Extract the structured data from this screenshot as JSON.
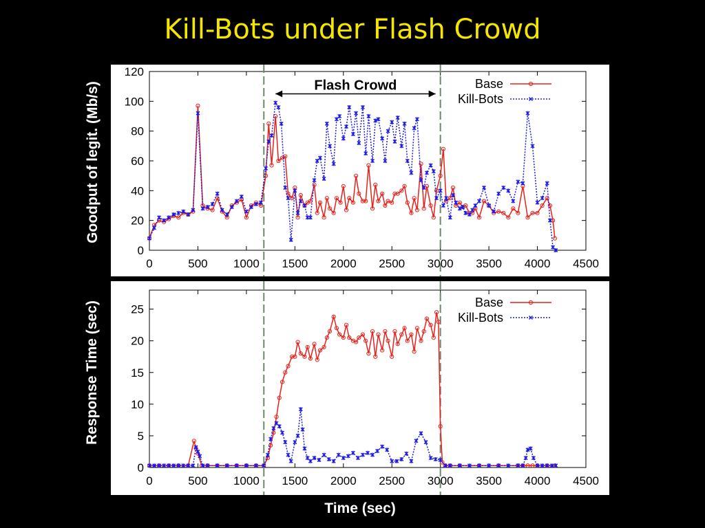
{
  "slide": {
    "title": "Kill-Bots under Flash Crowd",
    "xlabel": "Time (sec)",
    "colors": {
      "background": "#000000",
      "title": "#f5e600",
      "base": "#e8201a",
      "killbots": "#1a1ae8",
      "marker_line": "#6a8a6a"
    }
  },
  "chart_data": [
    {
      "type": "line",
      "title": "",
      "xlabel": "",
      "ylabel": "Goodput of legit.  (Mb/s)",
      "xlim": [
        0,
        4500
      ],
      "ylim": [
        0,
        120
      ],
      "xticks": [
        0,
        500,
        1000,
        1500,
        2000,
        2500,
        3000,
        3500,
        4000,
        4500
      ],
      "yticks": [
        0,
        20,
        40,
        60,
        80,
        100,
        120
      ],
      "grid": false,
      "legend": "top-right",
      "annotation": {
        "text": "Flash Crowd",
        "x_start": 1300,
        "x_end": 2950,
        "y": 105
      },
      "vlines": [
        1180,
        3000
      ],
      "series": [
        {
          "name": "Base",
          "x": [
            0,
            50,
            100,
            150,
            200,
            250,
            300,
            350,
            400,
            450,
            500,
            550,
            600,
            650,
            700,
            750,
            800,
            850,
            900,
            950,
            1000,
            1050,
            1100,
            1150,
            1200,
            1230,
            1260,
            1300,
            1330,
            1370,
            1400,
            1430,
            1470,
            1500,
            1530,
            1560,
            1600,
            1630,
            1660,
            1700,
            1730,
            1760,
            1800,
            1830,
            1860,
            1900,
            1930,
            1970,
            2000,
            2030,
            2060,
            2100,
            2130,
            2160,
            2200,
            2230,
            2260,
            2300,
            2330,
            2360,
            2400,
            2430,
            2460,
            2500,
            2530,
            2560,
            2600,
            2630,
            2660,
            2700,
            2730,
            2760,
            2800,
            2830,
            2860,
            2900,
            2930,
            2960,
            3000,
            3030,
            3060,
            3100,
            3130,
            3160,
            3200,
            3230,
            3260,
            3300,
            3330,
            3360,
            3400,
            3450,
            3500,
            3550,
            3600,
            3650,
            3700,
            3750,
            3800,
            3850,
            3900,
            3950,
            4000,
            4050,
            4100,
            4130,
            4160,
            4180
          ],
          "values": [
            8,
            17,
            20,
            19,
            21,
            23,
            22,
            25,
            24,
            26,
            97,
            30,
            28,
            27,
            35,
            26,
            22,
            30,
            32,
            34,
            22,
            30,
            32,
            30,
            50,
            85,
            57,
            90,
            60,
            62,
            63,
            38,
            35,
            42,
            22,
            37,
            30,
            32,
            33,
            44,
            25,
            32,
            22,
            35,
            28,
            25,
            35,
            32,
            43,
            27,
            35,
            32,
            50,
            38,
            33,
            33,
            57,
            28,
            44,
            33,
            38,
            30,
            33,
            32,
            38,
            38,
            40,
            43,
            32,
            25,
            35,
            27,
            58,
            28,
            43,
            30,
            22,
            40,
            50,
            68,
            33,
            35,
            42,
            30,
            32,
            29,
            30,
            25,
            25,
            28,
            22,
            33,
            30,
            25,
            26,
            25,
            22,
            28,
            25,
            43,
            22,
            25,
            25,
            30,
            35,
            30,
            20,
            8
          ]
        },
        {
          "name": "Kill-Bots",
          "x": [
            0,
            50,
            100,
            150,
            200,
            250,
            300,
            350,
            400,
            450,
            500,
            550,
            600,
            650,
            700,
            750,
            800,
            850,
            900,
            950,
            1000,
            1050,
            1100,
            1150,
            1200,
            1230,
            1260,
            1300,
            1330,
            1360,
            1400,
            1430,
            1460,
            1500,
            1530,
            1560,
            1600,
            1630,
            1660,
            1700,
            1730,
            1760,
            1800,
            1830,
            1860,
            1900,
            1930,
            1960,
            2000,
            2030,
            2060,
            2100,
            2130,
            2160,
            2200,
            2230,
            2260,
            2300,
            2330,
            2360,
            2400,
            2430,
            2460,
            2500,
            2530,
            2560,
            2600,
            2630,
            2660,
            2700,
            2730,
            2760,
            2800,
            2830,
            2860,
            2900,
            2930,
            2960,
            3000,
            3030,
            3060,
            3100,
            3130,
            3160,
            3200,
            3230,
            3260,
            3300,
            3330,
            3360,
            3400,
            3450,
            3500,
            3550,
            3600,
            3650,
            3700,
            3750,
            3800,
            3850,
            3900,
            3950,
            4000,
            4050,
            4100,
            4130,
            4160,
            4190
          ],
          "values": [
            8,
            15,
            22,
            20,
            22,
            24,
            25,
            26,
            24,
            27,
            92,
            28,
            29,
            31,
            38,
            27,
            24,
            29,
            33,
            36,
            26,
            29,
            31,
            32,
            55,
            73,
            77,
            99,
            96,
            85,
            42,
            35,
            7,
            40,
            25,
            33,
            30,
            22,
            22,
            47,
            60,
            62,
            48,
            85,
            70,
            58,
            88,
            90,
            75,
            83,
            96,
            78,
            92,
            72,
            96,
            65,
            90,
            60,
            87,
            88,
            75,
            60,
            80,
            86,
            73,
            89,
            70,
            85,
            60,
            52,
            82,
            88,
            47,
            42,
            52,
            57,
            53,
            35,
            40,
            30,
            35,
            22,
            37,
            32,
            28,
            29,
            25,
            24,
            27,
            30,
            33,
            42,
            30,
            26,
            38,
            42,
            40,
            33,
            46,
            45,
            92,
            70,
            32,
            35,
            45,
            20,
            2,
            0
          ]
        }
      ]
    },
    {
      "type": "line",
      "title": "",
      "xlabel": "Time (sec)",
      "ylabel": "Response Time (sec)",
      "xlim": [
        0,
        4500
      ],
      "ylim": [
        0,
        28
      ],
      "xticks": [
        0,
        500,
        1000,
        1500,
        2000,
        2500,
        3000,
        3500,
        4000,
        4500
      ],
      "yticks": [
        0,
        5,
        10,
        15,
        20,
        25
      ],
      "grid": false,
      "legend": "top-right",
      "vlines": [
        1180,
        3000
      ],
      "series": [
        {
          "name": "Base",
          "x": [
            0,
            100,
            200,
            300,
            400,
            460,
            480,
            500,
            540,
            600,
            700,
            800,
            900,
            1000,
            1100,
            1180,
            1220,
            1250,
            1280,
            1310,
            1340,
            1370,
            1400,
            1430,
            1470,
            1500,
            1530,
            1560,
            1600,
            1630,
            1660,
            1700,
            1730,
            1760,
            1800,
            1830,
            1860,
            1900,
            1930,
            1960,
            2000,
            2030,
            2060,
            2100,
            2130,
            2160,
            2200,
            2230,
            2260,
            2300,
            2330,
            2360,
            2400,
            2430,
            2460,
            2500,
            2530,
            2560,
            2600,
            2630,
            2660,
            2700,
            2730,
            2760,
            2800,
            2830,
            2860,
            2900,
            2930,
            2960,
            2980,
            3000,
            3020,
            3050,
            3100,
            3200,
            3400,
            3600,
            3800,
            3850,
            3900,
            3950,
            4000,
            4100,
            4180
          ],
          "values": [
            0.3,
            0.3,
            0.3,
            0.3,
            0.3,
            4.2,
            3,
            2.2,
            0.3,
            0.3,
            0.3,
            0.3,
            0.3,
            0.3,
            0.3,
            0.3,
            1.5,
            3.5,
            5.5,
            8,
            11,
            13.5,
            15,
            16,
            17.5,
            17.5,
            19.8,
            18,
            17.5,
            19,
            17.2,
            19.5,
            17,
            18.5,
            19,
            20.5,
            21.5,
            23.8,
            22,
            21,
            20.5,
            22.5,
            20.5,
            20,
            19.8,
            20.5,
            21,
            20,
            18,
            21.5,
            17.5,
            21,
            18.5,
            21.5,
            20,
            17.5,
            21.5,
            19.5,
            21,
            22,
            20,
            21,
            18.3,
            22,
            20,
            21.5,
            23.5,
            22.5,
            20.5,
            24.5,
            23,
            6.5,
            0.8,
            0.3,
            0.3,
            0.3,
            0.3,
            0.3,
            0.3,
            0.3,
            0.3,
            0.3,
            0.3,
            0.3,
            0.3
          ],
          "draw": "linemarkers"
        },
        {
          "name": "Kill-Bots",
          "x": [
            0,
            50,
            100,
            150,
            200,
            250,
            300,
            350,
            400,
            450,
            480,
            500,
            520,
            550,
            600,
            700,
            800,
            900,
            1000,
            1100,
            1180,
            1220,
            1250,
            1280,
            1310,
            1340,
            1370,
            1400,
            1430,
            1460,
            1500,
            1530,
            1560,
            1580,
            1600,
            1630,
            1660,
            1700,
            1750,
            1800,
            1850,
            1900,
            1950,
            2000,
            2050,
            2100,
            2150,
            2200,
            2250,
            2300,
            2350,
            2400,
            2450,
            2500,
            2550,
            2600,
            2650,
            2700,
            2750,
            2800,
            2850,
            2900,
            2950,
            3000,
            3050,
            3100,
            3200,
            3300,
            3400,
            3500,
            3600,
            3700,
            3800,
            3850,
            3880,
            3900,
            3930,
            3960,
            4000,
            4050,
            4100,
            4150,
            4190
          ],
          "values": [
            0.3,
            0.3,
            0.3,
            0.3,
            0.3,
            0.3,
            0.3,
            0.3,
            0.3,
            0.3,
            3.2,
            2.5,
            1.8,
            0.3,
            0.3,
            0.3,
            0.3,
            0.3,
            0.3,
            0.3,
            0.3,
            2,
            4.5,
            6.2,
            7,
            6.5,
            5.5,
            4,
            2,
            1,
            4,
            5,
            9.2,
            6,
            3,
            1.5,
            1,
            1.5,
            1.2,
            2,
            1.3,
            1,
            2,
            1.5,
            1.8,
            2.3,
            1.5,
            2,
            2.3,
            2,
            2.6,
            3.3,
            2.8,
            1,
            1,
            1.3,
            2.2,
            1,
            4.2,
            5.4,
            4,
            1.5,
            1.3,
            1.2,
            0.3,
            0.3,
            0.3,
            0.3,
            0.3,
            0.3,
            0.3,
            0.3,
            0.3,
            0.3,
            1.5,
            2.8,
            3,
            1.5,
            0.3,
            0.3,
            0.3,
            0.3,
            0.3
          ],
          "draw": "linemarkers"
        }
      ]
    }
  ]
}
